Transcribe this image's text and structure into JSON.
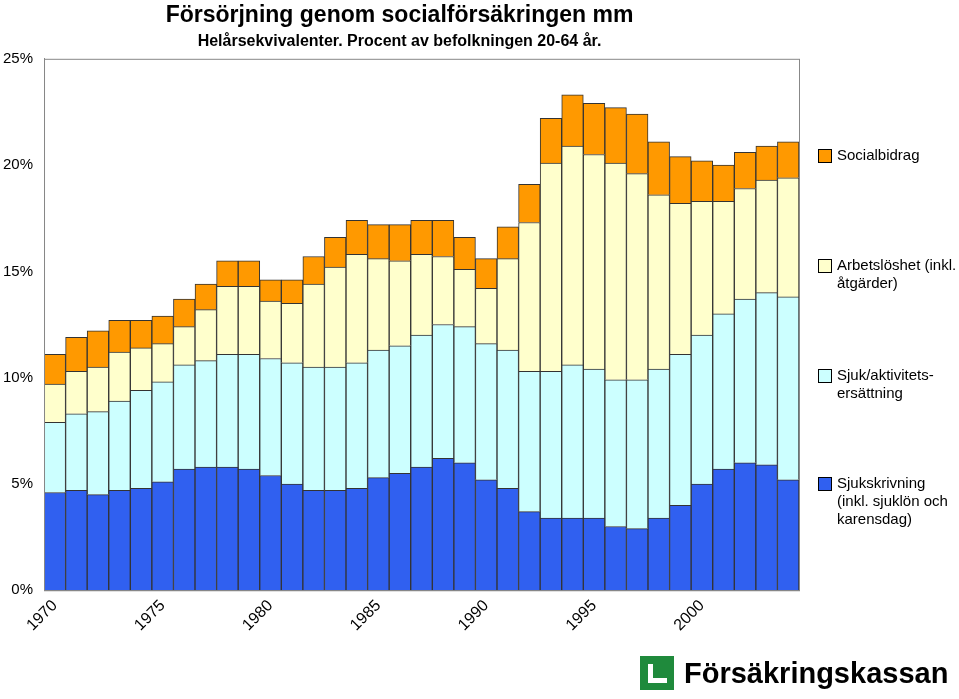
{
  "chart_data": {
    "type": "bar",
    "title": "Försörjning genom socialförsäkringen mm",
    "subtitle": "Helårsekvivalenter. Procent av befolkningen 20-64 år.",
    "footer": "Försäkringskassan",
    "stacked": true,
    "grid": false,
    "legend": "right",
    "categories": [
      "1970",
      null,
      null,
      null,
      null,
      "1975",
      null,
      null,
      null,
      null,
      "1980",
      null,
      null,
      null,
      null,
      "1985",
      null,
      null,
      null,
      null,
      "1990",
      null,
      null,
      null,
      null,
      "1995",
      null,
      null,
      null,
      null,
      "2000",
      null,
      null,
      null,
      null
    ],
    "ylim": [
      0,
      25
    ],
    "yticks": [
      {
        "value": 0,
        "label": "0%"
      },
      {
        "value": 5,
        "label": "5%"
      },
      {
        "value": 10,
        "label": "10%"
      },
      {
        "value": 15,
        "label": "15%"
      },
      {
        "value": 20,
        "label": "20%"
      },
      {
        "value": 25,
        "label": "25%"
      }
    ],
    "series": [
      {
        "name": "Sjukskrivning (inkl. sjuklön och karensdag)",
        "color": "#3060f0",
        "values": [
          4.6,
          4.7,
          4.5,
          4.7,
          4.8,
          5.1,
          5.7,
          5.8,
          5.8,
          5.7,
          5.4,
          5.0,
          4.7,
          4.7,
          4.8,
          5.3,
          5.5,
          5.8,
          6.2,
          6.0,
          5.2,
          4.8,
          3.7,
          3.4,
          3.4,
          3.4,
          3.0,
          2.9,
          3.4,
          4.0,
          5.0,
          5.7,
          6.0,
          5.9,
          5.2
        ]
      },
      {
        "name": "Sjuk/aktivitets-ersättning",
        "color": "#ccffff",
        "values": [
          3.3,
          3.6,
          3.9,
          4.2,
          4.6,
          4.7,
          4.9,
          5.0,
          5.3,
          5.4,
          5.5,
          5.7,
          5.8,
          5.8,
          5.9,
          6.0,
          6.0,
          6.2,
          6.3,
          6.4,
          6.4,
          6.5,
          6.6,
          6.9,
          7.2,
          7.0,
          6.9,
          7.0,
          7.0,
          7.1,
          7.0,
          7.3,
          7.7,
          8.1,
          8.6
        ]
      },
      {
        "name": "Arbetslöshet (inkl. åtgärder)",
        "color": "#ffffcc",
        "values": [
          1.8,
          2.0,
          2.1,
          2.3,
          2.0,
          1.8,
          1.8,
          2.4,
          3.2,
          3.2,
          2.7,
          2.8,
          3.9,
          4.7,
          5.1,
          4.3,
          4.0,
          3.8,
          3.2,
          2.7,
          2.6,
          4.3,
          7.0,
          9.8,
          10.3,
          10.1,
          10.2,
          9.7,
          8.2,
          7.1,
          6.3,
          5.3,
          5.2,
          5.3,
          5.6
        ]
      },
      {
        "name": "Socialbidrag",
        "color": "#ff9900",
        "values": [
          1.4,
          1.6,
          1.7,
          1.5,
          1.3,
          1.3,
          1.3,
          1.2,
          1.2,
          1.2,
          1.0,
          1.1,
          1.3,
          1.4,
          1.6,
          1.6,
          1.7,
          1.6,
          1.7,
          1.5,
          1.4,
          1.5,
          1.8,
          2.1,
          2.4,
          2.4,
          2.6,
          2.8,
          2.5,
          2.2,
          1.9,
          1.7,
          1.7,
          1.6,
          1.7
        ]
      }
    ]
  }
}
